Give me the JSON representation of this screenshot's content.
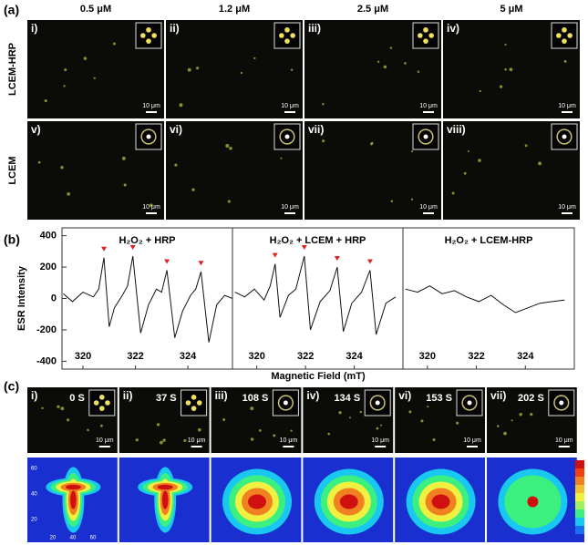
{
  "panel_a": {
    "label": "(a)",
    "columns": [
      "0.5 μM",
      "1.2 μM",
      "2.5 μM",
      "5 μM"
    ],
    "rows": [
      "LCEM-HRP",
      "LCEM"
    ],
    "images": [
      {
        "label": "i)",
        "scale": "10 μm"
      },
      {
        "label": "ii)",
        "scale": "10 μm"
      },
      {
        "label": "iii)",
        "scale": "10 μm"
      },
      {
        "label": "iv)",
        "scale": "10 μm"
      },
      {
        "label": "v)",
        "scale": "10 μm"
      },
      {
        "label": "vi)",
        "scale": "10 μm"
      },
      {
        "label": "vii)",
        "scale": "10 μm"
      },
      {
        "label": "viii)",
        "scale": "10 μm"
      }
    ]
  },
  "chart_data": [
    {
      "type": "line",
      "label": "(b)",
      "title": "H₂O₂ + HRP",
      "ylabel": "ESR Intensity",
      "x": [
        319.25,
        319.6,
        320.0,
        320.4,
        320.6,
        320.8,
        321.0,
        321.2,
        321.5,
        321.7,
        321.9,
        322.2,
        322.5,
        322.8,
        323.0,
        323.2,
        323.5,
        323.8,
        324.1,
        324.3,
        324.5,
        324.8,
        325.1,
        325.4,
        325.7
      ],
      "values": [
        30,
        -20,
        40,
        10,
        60,
        260,
        -180,
        -60,
        20,
        80,
        270,
        -220,
        -40,
        60,
        40,
        180,
        -250,
        -80,
        20,
        60,
        170,
        -280,
        -40,
        20,
        0
      ],
      "xlim": [
        319.2,
        325.7
      ],
      "xticks": [
        320,
        322,
        324
      ],
      "ylim": [
        -450,
        450
      ],
      "yticks": [
        400,
        200,
        0,
        -200,
        -400
      ],
      "color": "#111111"
    },
    {
      "type": "line",
      "title": "H₂O₂ + LCEM + HRP",
      "xlabel": "Magnetic Field (mT)",
      "x": [
        319.1,
        319.5,
        319.9,
        320.3,
        320.55,
        320.75,
        320.95,
        321.3,
        321.6,
        321.95,
        322.2,
        322.6,
        323.0,
        323.3,
        323.55,
        323.9,
        324.3,
        324.65,
        324.9,
        325.3,
        325.7
      ],
      "values": [
        40,
        10,
        60,
        -10,
        80,
        220,
        -120,
        20,
        60,
        270,
        -200,
        -20,
        50,
        200,
        -210,
        -30,
        40,
        180,
        -230,
        -30,
        10
      ],
      "xlim": [
        319.0,
        326.0
      ],
      "xticks": [
        320,
        322,
        324
      ],
      "ylim": [
        -450,
        450
      ],
      "color": "#111111"
    },
    {
      "type": "line",
      "title": "H₂O₂ + LCEM-HRP",
      "x": [
        319.1,
        319.6,
        320.1,
        320.6,
        321.1,
        321.6,
        322.1,
        322.6,
        323.1,
        323.6,
        324.1,
        324.6,
        325.1,
        325.6
      ],
      "values": [
        60,
        40,
        80,
        30,
        50,
        10,
        -20,
        20,
        -40,
        -90,
        -60,
        -30,
        -20,
        -10
      ],
      "xlim": [
        319.0,
        326.0
      ],
      "xticks": [
        320,
        322,
        324
      ],
      "ylim": [
        -450,
        450
      ],
      "color": "#111111"
    }
  ],
  "panel_c": {
    "label": "(c)",
    "images": [
      {
        "label": "i)",
        "time": "0 S",
        "scale": "10 μm"
      },
      {
        "label": "ii)",
        "time": "37 S",
        "scale": "10 μm"
      },
      {
        "label": "iii)",
        "time": "108 S",
        "scale": "10 μm"
      },
      {
        "label": "iv)",
        "time": "134 S",
        "scale": "10 μm"
      },
      {
        "label": "vi)",
        "time": "153 S",
        "scale": "10 μm"
      },
      {
        "label": "vii)",
        "time": "202 S",
        "scale": "10 μm"
      }
    ],
    "map_yticks": [
      60,
      40,
      20
    ],
    "map_xticks": [
      20,
      40,
      60
    ]
  }
}
